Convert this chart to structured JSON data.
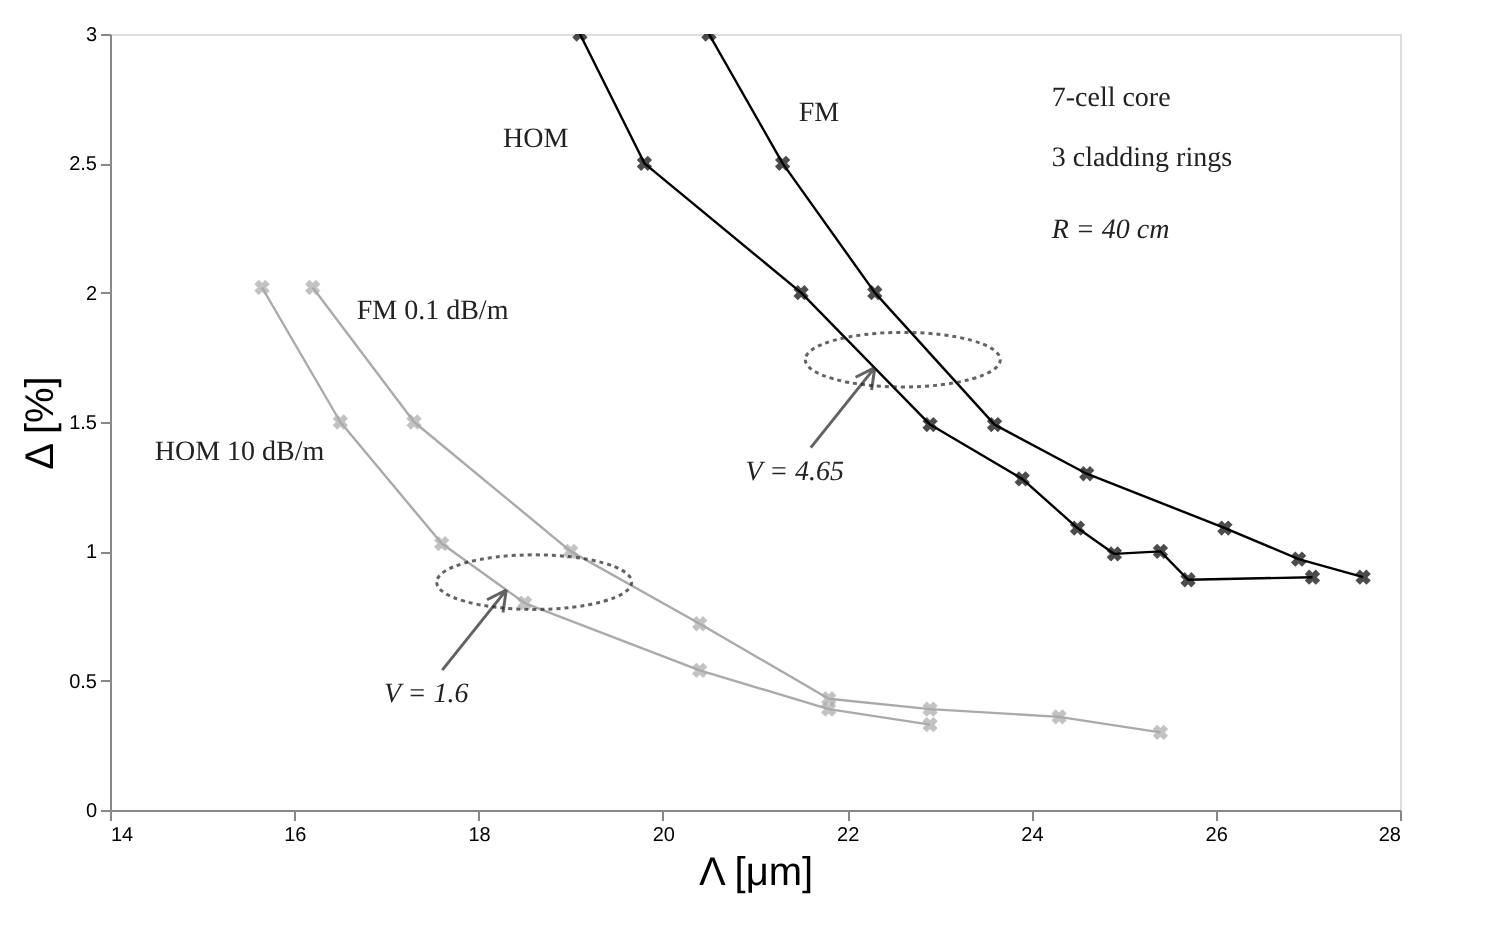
{
  "chart_data": {
    "type": "line",
    "xlabel": "Λ [μm]",
    "ylabel": "Δ [%]",
    "xlim": [
      14,
      28
    ],
    "xticks": [
      14,
      16,
      18,
      20,
      22,
      24,
      26,
      28
    ],
    "ylim": [
      0,
      3
    ],
    "yticks": [
      0,
      0.5,
      1,
      1.5,
      2,
      2.5,
      3
    ],
    "grid": false,
    "marker": "cross",
    "line_style": "solid",
    "series": [
      {
        "name": "HOM",
        "color": "#000000",
        "x": [
          19.1,
          19.8,
          21.5,
          22.9,
          23.9,
          24.5,
          24.9,
          25.4,
          25.7,
          27.05
        ],
        "values": [
          3.0,
          2.5,
          2.0,
          1.49,
          1.28,
          1.09,
          0.99,
          1.0,
          0.89,
          0.9
        ]
      },
      {
        "name": "FM",
        "color": "#000000",
        "x": [
          20.5,
          21.3,
          22.3,
          23.6,
          24.6,
          26.1,
          26.9,
          27.6
        ],
        "values": [
          3.0,
          2.5,
          2.0,
          1.49,
          1.3,
          1.09,
          0.97,
          0.9
        ]
      },
      {
        "name": "FM 0.1 dB/m",
        "color": "#aaaaaa",
        "x": [
          16.2,
          17.3,
          19.0,
          20.4,
          21.8,
          22.9,
          24.3,
          25.4
        ],
        "values": [
          2.02,
          1.5,
          1.0,
          0.72,
          0.43,
          0.39,
          0.36,
          0.3
        ]
      },
      {
        "name": "HOM 10 dB/m",
        "color": "#aaaaaa",
        "x": [
          15.65,
          16.5,
          17.6,
          18.5,
          20.4,
          21.8,
          22.9
        ],
        "values": [
          2.02,
          1.5,
          1.03,
          0.8,
          0.54,
          0.39,
          0.33
        ]
      }
    ],
    "annotations": [
      "7-cell core",
      "3 cladding rings",
      "R = 40 cm",
      {
        "text": "V = 4.65",
        "x": 22.3,
        "y": 1.71
      },
      {
        "text": "V = 1.6",
        "x": 18.3,
        "y": 0.85
      }
    ]
  }
}
